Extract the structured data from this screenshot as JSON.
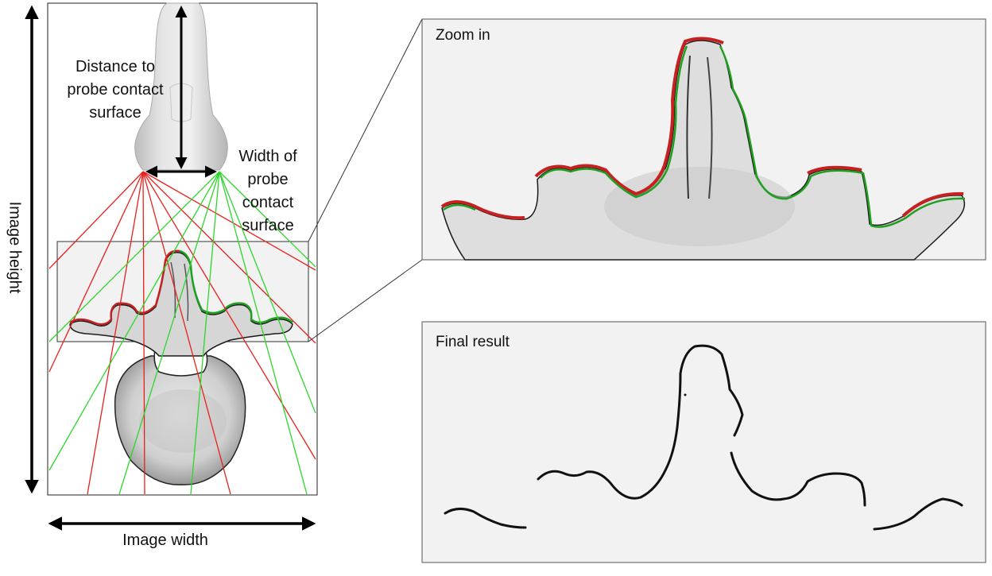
{
  "labels": {
    "distance_line1": "Distance to",
    "distance_line2": "probe contact",
    "distance_line3": "surface",
    "width_line1": "Width of",
    "width_line2": "probe",
    "width_line3": "contact",
    "width_line4": "surface",
    "image_height": "Image height",
    "image_width": "Image width"
  },
  "panels": {
    "zoom_title": "Zoom in",
    "final_title": "Final result"
  },
  "colors": {
    "red_rays": "#e8201c",
    "green_rays": "#2cd62c",
    "red_contour": "#c62020",
    "green_contour": "#20a020",
    "panel_bg": "#f2f2f2",
    "contour_black": "#111111"
  }
}
